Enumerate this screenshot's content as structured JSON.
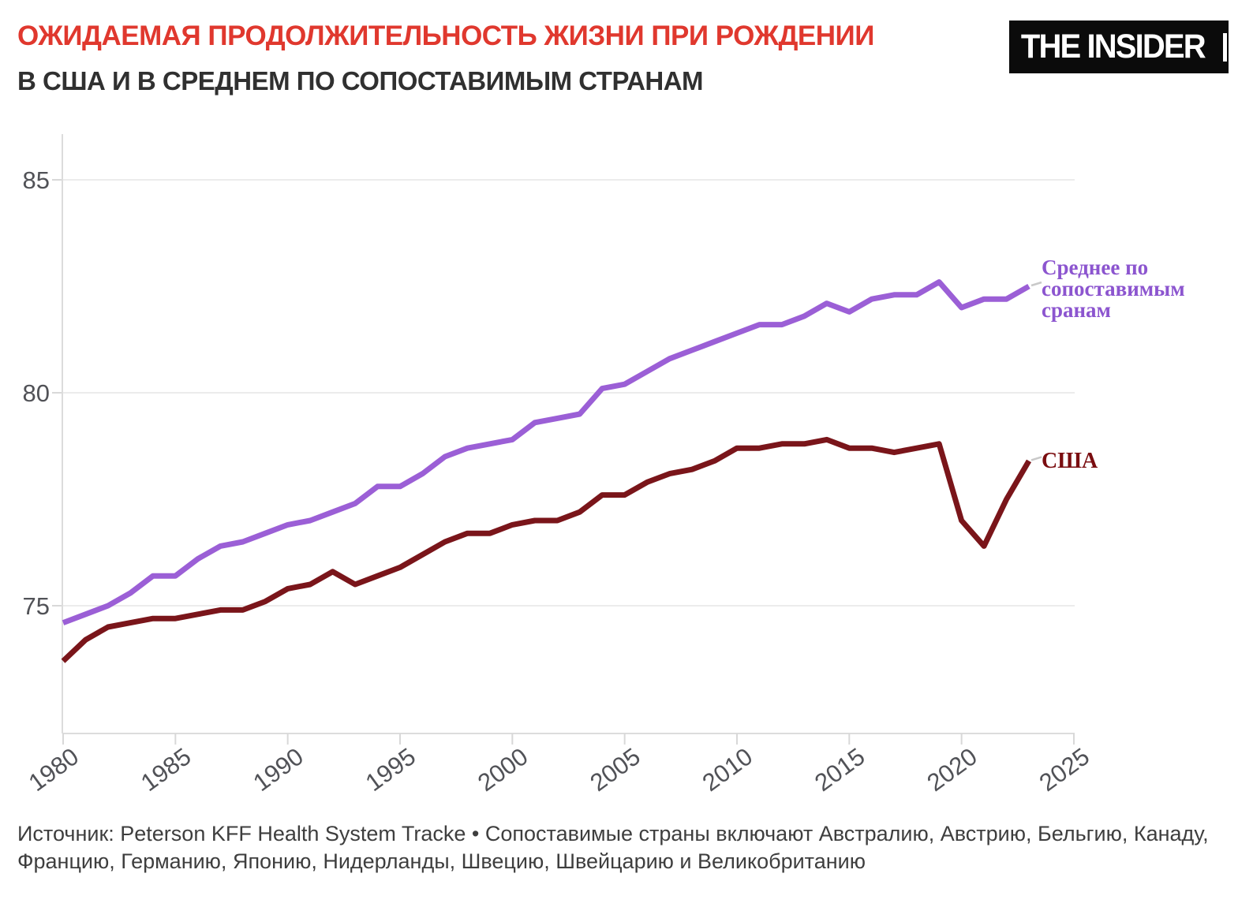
{
  "header": {
    "title": "ОЖИДАЕМАЯ ПРОДОЛЖИТЕЛЬНОСТЬ ЖИЗНИ ПРИ РОЖДЕНИИ",
    "subtitle": "В США И В СРЕДНЕМ ПО СОПОСТАВИМЫМ СТРАНАМ",
    "logo_text": "THE INSIDER"
  },
  "colors": {
    "title_red": "#E0382E",
    "subtitle_dark": "#303030",
    "comparable_line": "#9B5FD6",
    "comparable_label": "#8C55CF",
    "us_line": "#7A151A",
    "us_label": "#7A0D10",
    "axis_text": "#515257",
    "gridline": "#ECECEC",
    "axis_line": "#DCDCDC",
    "tick": "#D8D8D8",
    "source_text": "#3E3E3E",
    "logo_bg": "#0B0B0B",
    "logo_fg": "#FFFFFF"
  },
  "chart_data": {
    "type": "line",
    "title": "Ожидаемая продолжительность жизни при рождении в США и в среднем по сопоставимым странам",
    "xlabel": "",
    "ylabel": "",
    "xlim": [
      1980,
      2025
    ],
    "ylim": [
      72,
      86
    ],
    "grid": "horizontal",
    "x_ticks": [
      "1980",
      "1985",
      "1990",
      "1995",
      "2000",
      "2005",
      "2010",
      "2015",
      "2020",
      "2025"
    ],
    "y_ticks": [
      "85",
      "80",
      "75"
    ],
    "x": [
      1980,
      1981,
      1982,
      1983,
      1984,
      1985,
      1986,
      1987,
      1988,
      1989,
      1990,
      1991,
      1992,
      1993,
      1994,
      1995,
      1996,
      1997,
      1998,
      1999,
      2000,
      2001,
      2002,
      2003,
      2004,
      2005,
      2006,
      2007,
      2008,
      2009,
      2010,
      2011,
      2012,
      2013,
      2014,
      2015,
      2016,
      2017,
      2018,
      2019,
      2020,
      2021,
      2022,
      2023
    ],
    "series": [
      {
        "name": "Среднее по сопоставимым сранам",
        "color": "#9B5FD6",
        "values": [
          74.6,
          74.8,
          75.0,
          75.3,
          75.7,
          75.7,
          76.1,
          76.4,
          76.5,
          76.7,
          76.9,
          77.0,
          77.2,
          77.4,
          77.8,
          77.8,
          78.1,
          78.5,
          78.7,
          78.8,
          78.9,
          79.3,
          79.4,
          79.5,
          80.1,
          80.2,
          80.5,
          80.8,
          81.0,
          81.2,
          81.4,
          81.6,
          81.6,
          81.8,
          82.1,
          81.9,
          82.2,
          82.3,
          82.3,
          82.6,
          82.0,
          82.2,
          82.2,
          82.5
        ]
      },
      {
        "name": "США",
        "color": "#7A151A",
        "values": [
          73.7,
          74.2,
          74.5,
          74.6,
          74.7,
          74.7,
          74.8,
          74.9,
          74.9,
          75.1,
          75.4,
          75.5,
          75.8,
          75.5,
          75.7,
          75.9,
          76.2,
          76.5,
          76.7,
          76.7,
          76.9,
          77.0,
          77.0,
          77.2,
          77.6,
          77.6,
          77.9,
          78.1,
          78.2,
          78.4,
          78.7,
          78.7,
          78.8,
          78.8,
          78.9,
          78.7,
          78.7,
          78.6,
          78.7,
          78.8,
          77.0,
          76.4,
          77.5,
          78.4
        ]
      }
    ],
    "legend": {
      "comparable_lines": [
        "Среднее по",
        "сопоставимым",
        "сранам"
      ],
      "us": "США",
      "position": "right-of-line-ends"
    }
  },
  "source": {
    "lines": [
      "Источник: Peterson KFF Health System Tracke • Сопоставимые страны включают Австралию, Австрию, Бельгию, Канаду,",
      "Францию, Германию, Японию, Нидерланды, Швецию, Швейцарию и Великобританию"
    ]
  }
}
